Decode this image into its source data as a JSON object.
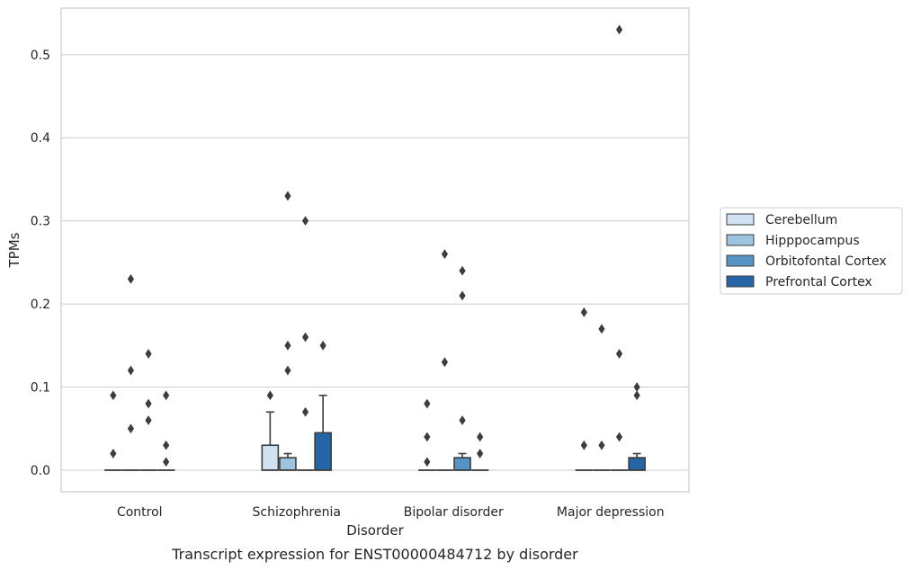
{
  "chart_data": {
    "type": "box",
    "caption": "Transcript expression for ENST00000484712 by disorder",
    "xlabel": "Disorder",
    "ylabel": "TPMs",
    "ylim": [
      -0.026,
      0.556
    ],
    "yticks": [
      0.0,
      0.1,
      0.2,
      0.3,
      0.4,
      0.5
    ],
    "ytick_labels": [
      "0.0",
      "0.1",
      "0.2",
      "0.3",
      "0.4",
      "0.5"
    ],
    "grid": "horizontal",
    "legend_position": "right",
    "categories": [
      "Control",
      "Schizophrenia",
      "Bipolar disorder",
      "Major depression"
    ],
    "series": [
      {
        "name": "Cerebellum",
        "color": "#d0e1f2",
        "boxes": [
          {
            "q1": 0,
            "median": 0,
            "q3": 0,
            "whisker_low": 0,
            "whisker_high": 0,
            "outliers": [
              0.02,
              0.09
            ]
          },
          {
            "q1": 0,
            "median": 0,
            "q3": 0.03,
            "whisker_low": 0,
            "whisker_high": 0.07,
            "outliers": [
              0.09
            ]
          },
          {
            "q1": 0,
            "median": 0,
            "q3": 0,
            "whisker_low": 0,
            "whisker_high": 0,
            "outliers": [
              0.01,
              0.04,
              0.08
            ]
          },
          {
            "q1": 0,
            "median": 0,
            "q3": 0,
            "whisker_low": 0,
            "whisker_high": 0,
            "outliers": [
              0.03,
              0.19
            ]
          }
        ]
      },
      {
        "name": "Hipppocampus",
        "color": "#9dc3df",
        "boxes": [
          {
            "q1": 0,
            "median": 0,
            "q3": 0,
            "whisker_low": 0,
            "whisker_high": 0,
            "outliers": [
              0.05,
              0.12,
              0.23
            ]
          },
          {
            "q1": 0,
            "median": 0,
            "q3": 0.015,
            "whisker_low": 0,
            "whisker_high": 0.02,
            "outliers": [
              0.12,
              0.15,
              0.33
            ]
          },
          {
            "q1": 0,
            "median": 0,
            "q3": 0,
            "whisker_low": 0,
            "whisker_high": 0,
            "outliers": [
              0.13,
              0.26
            ]
          },
          {
            "q1": 0,
            "median": 0,
            "q3": 0,
            "whisker_low": 0,
            "whisker_high": 0,
            "outliers": [
              0.03,
              0.17
            ]
          }
        ]
      },
      {
        "name": "Orbitofontal Cortex",
        "color": "#5493c3",
        "boxes": [
          {
            "q1": 0,
            "median": 0,
            "q3": 0,
            "whisker_low": 0,
            "whisker_high": 0,
            "outliers": [
              0.06,
              0.08,
              0.14
            ]
          },
          {
            "q1": 0,
            "median": 0,
            "q3": 0,
            "whisker_low": 0,
            "whisker_high": 0,
            "outliers": [
              0.07,
              0.16,
              0.3
            ]
          },
          {
            "q1": 0,
            "median": 0,
            "q3": 0.015,
            "whisker_low": 0,
            "whisker_high": 0.02,
            "outliers": [
              0.06,
              0.21,
              0.24
            ]
          },
          {
            "q1": 0,
            "median": 0,
            "q3": 0,
            "whisker_low": 0,
            "whisker_high": 0,
            "outliers": [
              0.04,
              0.14,
              0.53
            ]
          }
        ]
      },
      {
        "name": "Prefrontal Cortex",
        "color": "#2565a6",
        "boxes": [
          {
            "q1": 0,
            "median": 0,
            "q3": 0,
            "whisker_low": 0,
            "whisker_high": 0,
            "outliers": [
              0.01,
              0.03,
              0.09
            ]
          },
          {
            "q1": 0,
            "median": 0,
            "q3": 0.045,
            "whisker_low": 0,
            "whisker_high": 0.09,
            "outliers": [
              0.15
            ]
          },
          {
            "q1": 0,
            "median": 0,
            "q3": 0,
            "whisker_low": 0,
            "whisker_high": 0,
            "outliers": [
              0.02,
              0.04
            ]
          },
          {
            "q1": 0,
            "median": 0,
            "q3": 0.015,
            "whisker_low": 0,
            "whisker_high": 0.02,
            "outliers": [
              0.09,
              0.1
            ]
          }
        ]
      }
    ]
  }
}
